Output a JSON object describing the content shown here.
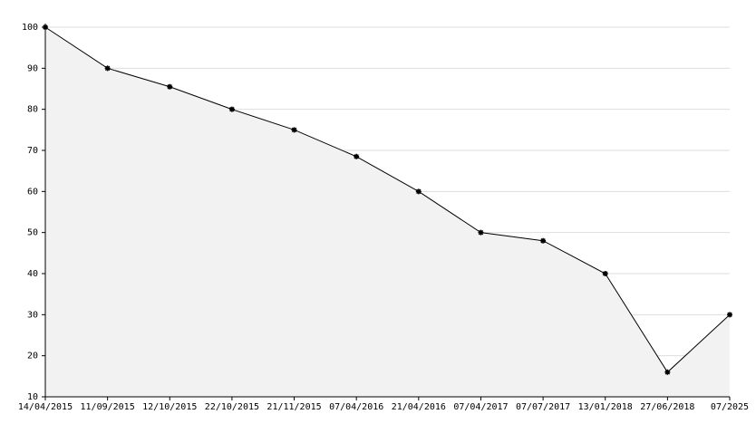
{
  "chart_data": {
    "type": "area",
    "categories": [
      "14/04/2015",
      "11/09/2015",
      "12/10/2015",
      "22/10/2015",
      "21/11/2015",
      "07/04/2016",
      "21/04/2016",
      "07/04/2017",
      "07/07/2017",
      "13/01/2018",
      "27/06/2018",
      "07/2025"
    ],
    "values": [
      100,
      90,
      85.5,
      80,
      75,
      68.5,
      60,
      50,
      48,
      40,
      16,
      30
    ],
    "color": "#000000",
    "fill": "#f2f2f2",
    "ylim": [
      10,
      100
    ],
    "yticks": [
      10,
      20,
      30,
      40,
      50,
      60,
      70,
      80,
      90,
      100
    ],
    "grid": true
  }
}
